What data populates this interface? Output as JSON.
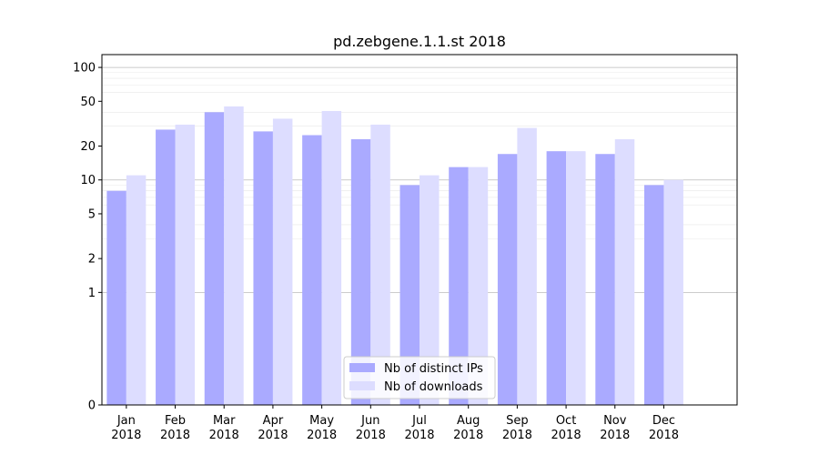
{
  "chart_data": {
    "type": "bar",
    "title": "pd.zebgene.1.1.st 2018",
    "xlabel": "",
    "ylabel": "",
    "scale": "symlog",
    "ylim": [
      0,
      130
    ],
    "yticks": [
      0,
      1,
      2,
      5,
      10,
      20,
      50,
      100
    ],
    "ytick_labels": [
      "0",
      "1",
      "2",
      "5",
      "10",
      "20",
      "50",
      "100"
    ],
    "grid": "horizontal (major dark, minor light)",
    "legend_position": "lower center",
    "categories": [
      [
        "Jan",
        "2018"
      ],
      [
        "Feb",
        "2018"
      ],
      [
        "Mar",
        "2018"
      ],
      [
        "Apr",
        "2018"
      ],
      [
        "May",
        "2018"
      ],
      [
        "Jun",
        "2018"
      ],
      [
        "Jul",
        "2018"
      ],
      [
        "Aug",
        "2018"
      ],
      [
        "Sep",
        "2018"
      ],
      [
        "Oct",
        "2018"
      ],
      [
        "Nov",
        "2018"
      ],
      [
        "Dec",
        "2018"
      ]
    ],
    "series": [
      {
        "name": "Nb of distinct IPs",
        "color": "#aaaaff",
        "values": [
          8,
          28,
          40,
          27,
          25,
          23,
          9,
          13,
          17,
          18,
          17,
          9
        ]
      },
      {
        "name": "Nb of downloads",
        "color": "#ddddff",
        "values": [
          11,
          31,
          45,
          35,
          41,
          31,
          11,
          13,
          29,
          18,
          23,
          10
        ]
      }
    ]
  }
}
